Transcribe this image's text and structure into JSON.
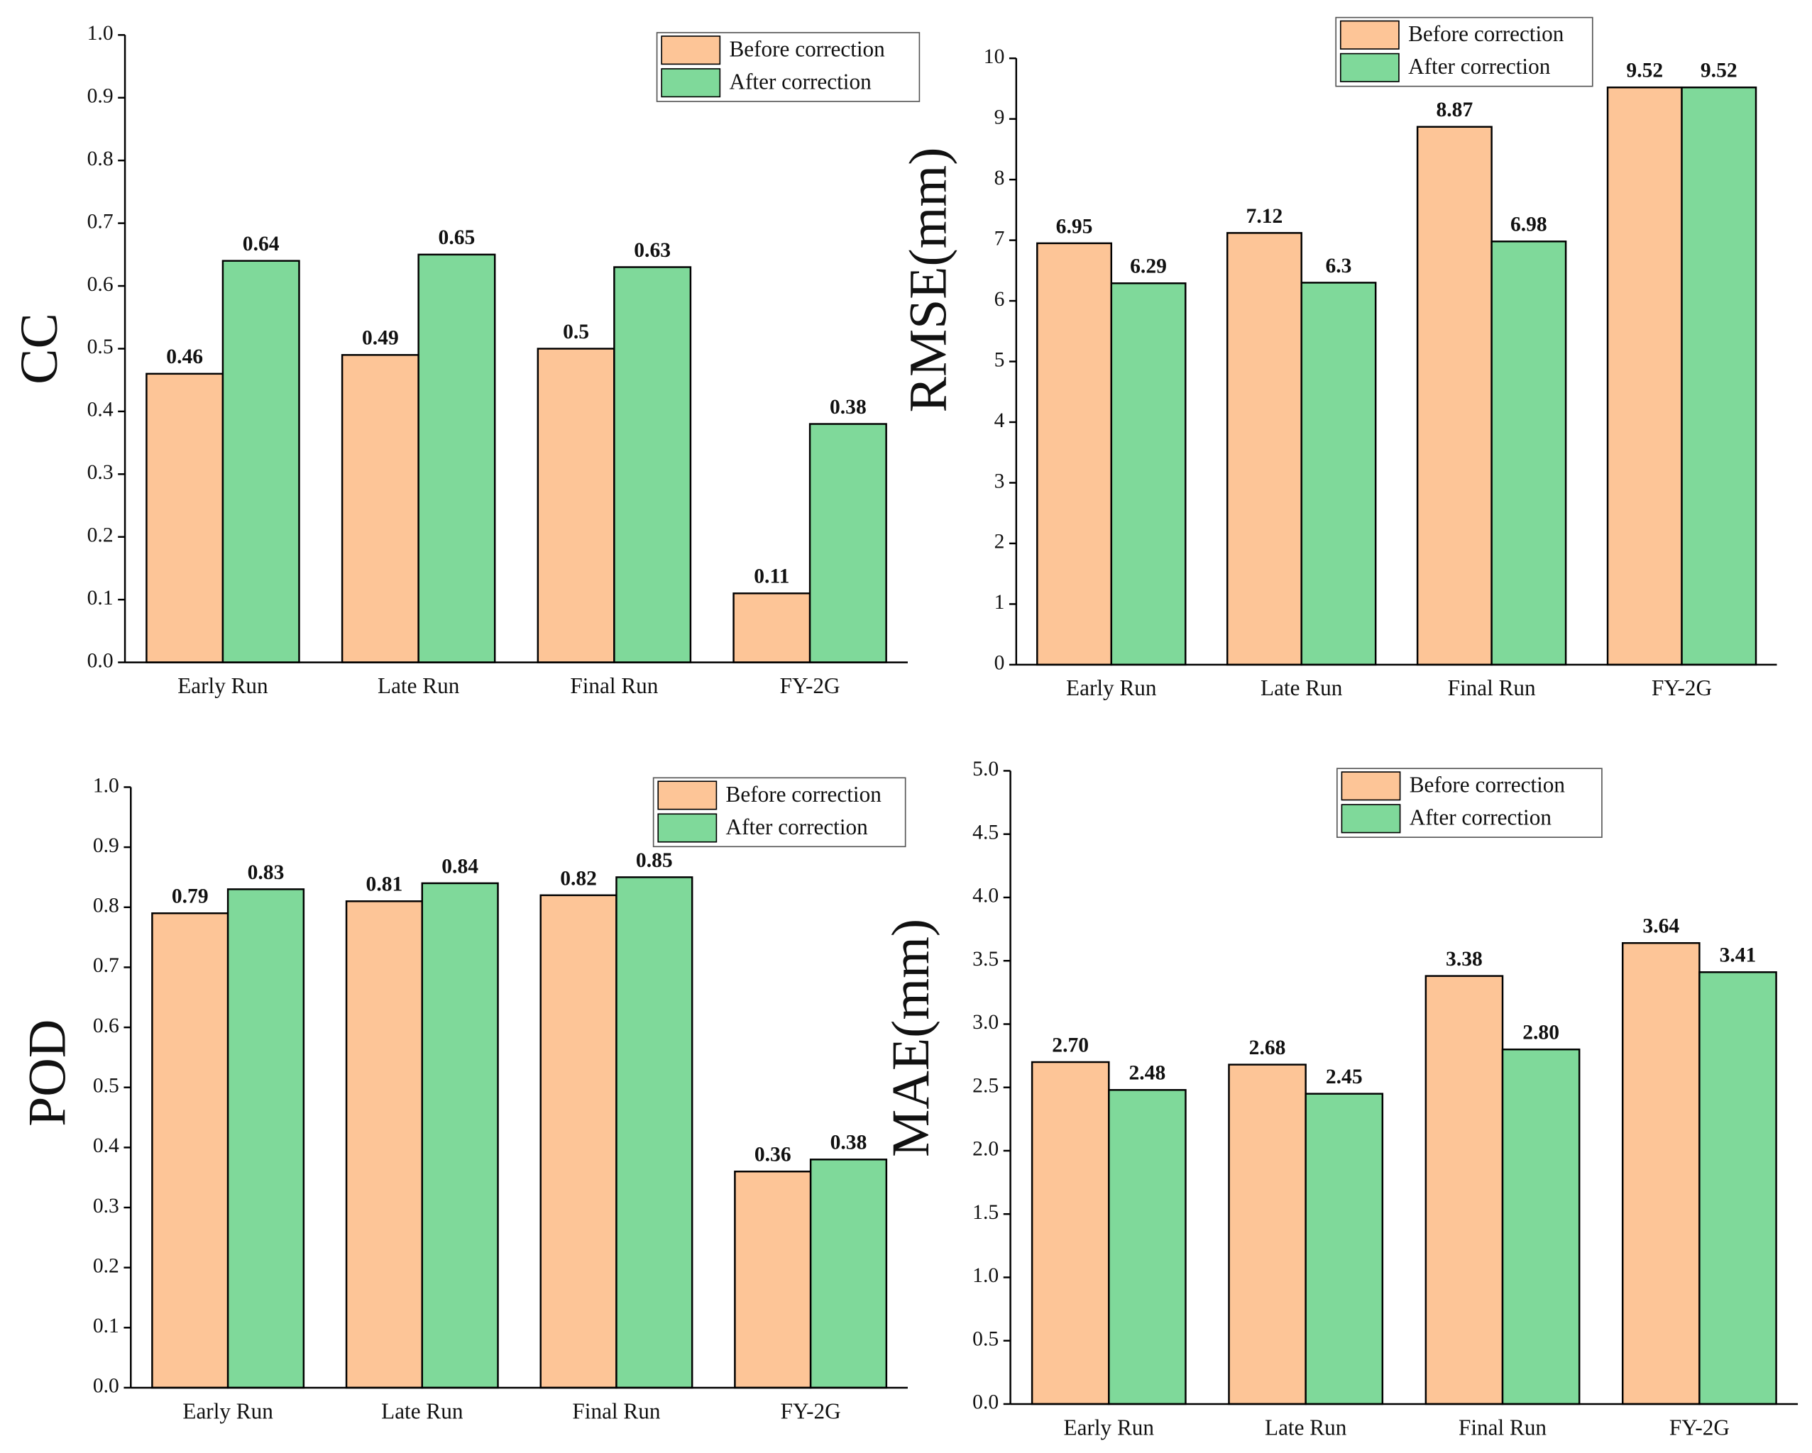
{
  "chart_data": [
    {
      "type": "bar",
      "y_label": "CC",
      "categories": [
        "Early Run",
        "Late Run",
        "Final Run",
        "FY-2G"
      ],
      "series": [
        {
          "name": "Before correction",
          "color": "#fdc597",
          "values": [
            0.46,
            0.49,
            0.5,
            0.11
          ]
        },
        {
          "name": "After correction",
          "color": "#7fd99a",
          "values": [
            0.64,
            0.65,
            0.63,
            0.38
          ]
        }
      ],
      "ylim": [
        0,
        1
      ],
      "yticks": [
        {
          "value": 0,
          "label": "0.0"
        },
        0.1,
        0.2,
        0.3,
        0.4,
        0.5,
        0.6,
        0.7,
        0.8,
        0.9,
        {
          "value": 1,
          "label": "1.0"
        }
      ],
      "legend": "upper right"
    },
    {
      "type": "bar",
      "y_label": "RMSE(mm)",
      "categories": [
        "Early Run",
        "Late Run",
        "Final Run",
        "FY-2G"
      ],
      "series": [
        {
          "name": "Before correction",
          "color": "#fdc597",
          "values": [
            6.95,
            7.12,
            8.87,
            9.52
          ]
        },
        {
          "name": "After correction",
          "color": "#7fd99a",
          "values": [
            6.29,
            6.3,
            6.98,
            9.52
          ]
        }
      ],
      "ylim": [
        0,
        10
      ],
      "yticks": [
        0,
        1,
        2,
        3,
        4,
        5,
        6,
        7,
        8,
        9,
        10
      ],
      "legend": "upper right"
    },
    {
      "type": "bar",
      "y_label": "POD",
      "categories": [
        "Early Run",
        "Late Run",
        "Final Run",
        "FY-2G"
      ],
      "series": [
        {
          "name": "Before correction",
          "color": "#fdc597",
          "values": [
            0.79,
            0.81,
            0.82,
            0.36
          ]
        },
        {
          "name": "After correction",
          "color": "#7fd99a",
          "values": [
            0.83,
            0.84,
            0.85,
            0.38
          ]
        }
      ],
      "ylim": [
        0,
        1
      ],
      "yticks": [
        {
          "value": 0,
          "label": "0.0"
        },
        0.1,
        0.2,
        0.3,
        0.4,
        0.5,
        0.6,
        0.7,
        0.8,
        0.9,
        {
          "value": 1,
          "label": "1.0"
        }
      ],
      "legend": "upper right"
    },
    {
      "type": "bar",
      "y_label": "MAE(mm)",
      "categories": [
        "Early Run",
        "Late Run",
        "Final Run",
        "FY-2G"
      ],
      "series": [
        {
          "name": "Before correction",
          "color": "#fdc597",
          "values": [
            2.7,
            2.68,
            3.38,
            3.64
          ],
          "value_labels": [
            "2.70",
            "2.68",
            "3.38",
            "3.64"
          ]
        },
        {
          "name": "After correction",
          "color": "#7fd99a",
          "values": [
            2.48,
            2.45,
            2.8,
            3.41
          ],
          "value_labels": [
            "2.48",
            "2.45",
            "2.80",
            "3.41"
          ]
        }
      ],
      "ylim": [
        0,
        5
      ],
      "yticks": [
        {
          "value": 0,
          "label": "0.0"
        },
        0.5,
        {
          "value": 1,
          "label": "1.0"
        },
        1.5,
        {
          "value": 2,
          "label": "2.0"
        },
        2.5,
        {
          "value": 3,
          "label": "3.0"
        },
        3.5,
        {
          "value": 4,
          "label": "4.0"
        },
        4.5,
        {
          "value": 5,
          "label": "5.0"
        }
      ],
      "legend": "upper right"
    }
  ]
}
